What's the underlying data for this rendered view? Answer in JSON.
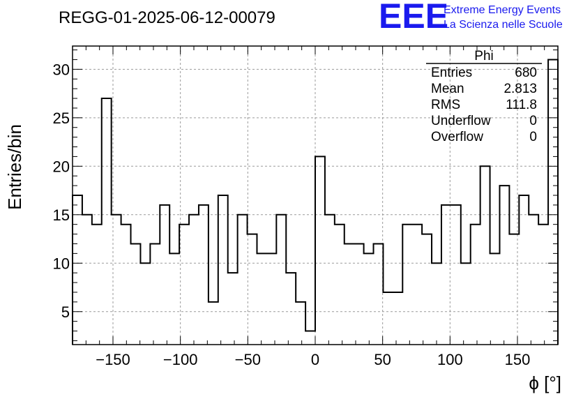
{
  "chart_data": {
    "type": "histogram",
    "title": "REGG-01-2025-06-12-00079",
    "xlabel": "ϕ [°]",
    "ylabel": "Entries/bin",
    "xlim": [
      -180,
      180
    ],
    "ylim": [
      1.6,
      32.4
    ],
    "xticks": [
      -150,
      -100,
      -50,
      0,
      50,
      100,
      150
    ],
    "xtick_labels": [
      "−150",
      "−100",
      "−50",
      "0",
      "50",
      "100",
      "150"
    ],
    "yticks": [
      5,
      10,
      15,
      20,
      25,
      30
    ],
    "ytick_labels": [
      "5",
      "10",
      "15",
      "20",
      "25",
      "30"
    ],
    "grid": true,
    "bin_width": 7.2,
    "values": [
      17,
      15,
      14,
      27,
      15,
      14,
      12,
      10,
      12,
      16,
      11,
      14,
      15,
      16,
      6,
      17,
      9,
      15,
      13,
      11,
      11,
      15,
      9,
      6,
      3,
      21,
      15,
      14,
      12,
      12,
      11,
      12,
      7,
      7,
      14,
      14,
      13,
      10,
      16,
      16,
      10,
      14,
      20,
      11,
      18,
      13,
      17,
      15,
      14,
      31
    ],
    "stats": {
      "name": "Phi",
      "rows": [
        {
          "label": "Entries",
          "value": "680"
        },
        {
          "label": "Mean",
          "value": "2.813"
        },
        {
          "label": "RMS",
          "value": "111.8"
        },
        {
          "label": "Underflow",
          "value": "0"
        },
        {
          "label": "Overflow",
          "value": "0"
        }
      ]
    }
  },
  "logo": {
    "mark": "EEE",
    "line1": "Extreme Energy Events",
    "line2": "La Scienza nelle Scuole",
    "color": "#1a1aee"
  }
}
